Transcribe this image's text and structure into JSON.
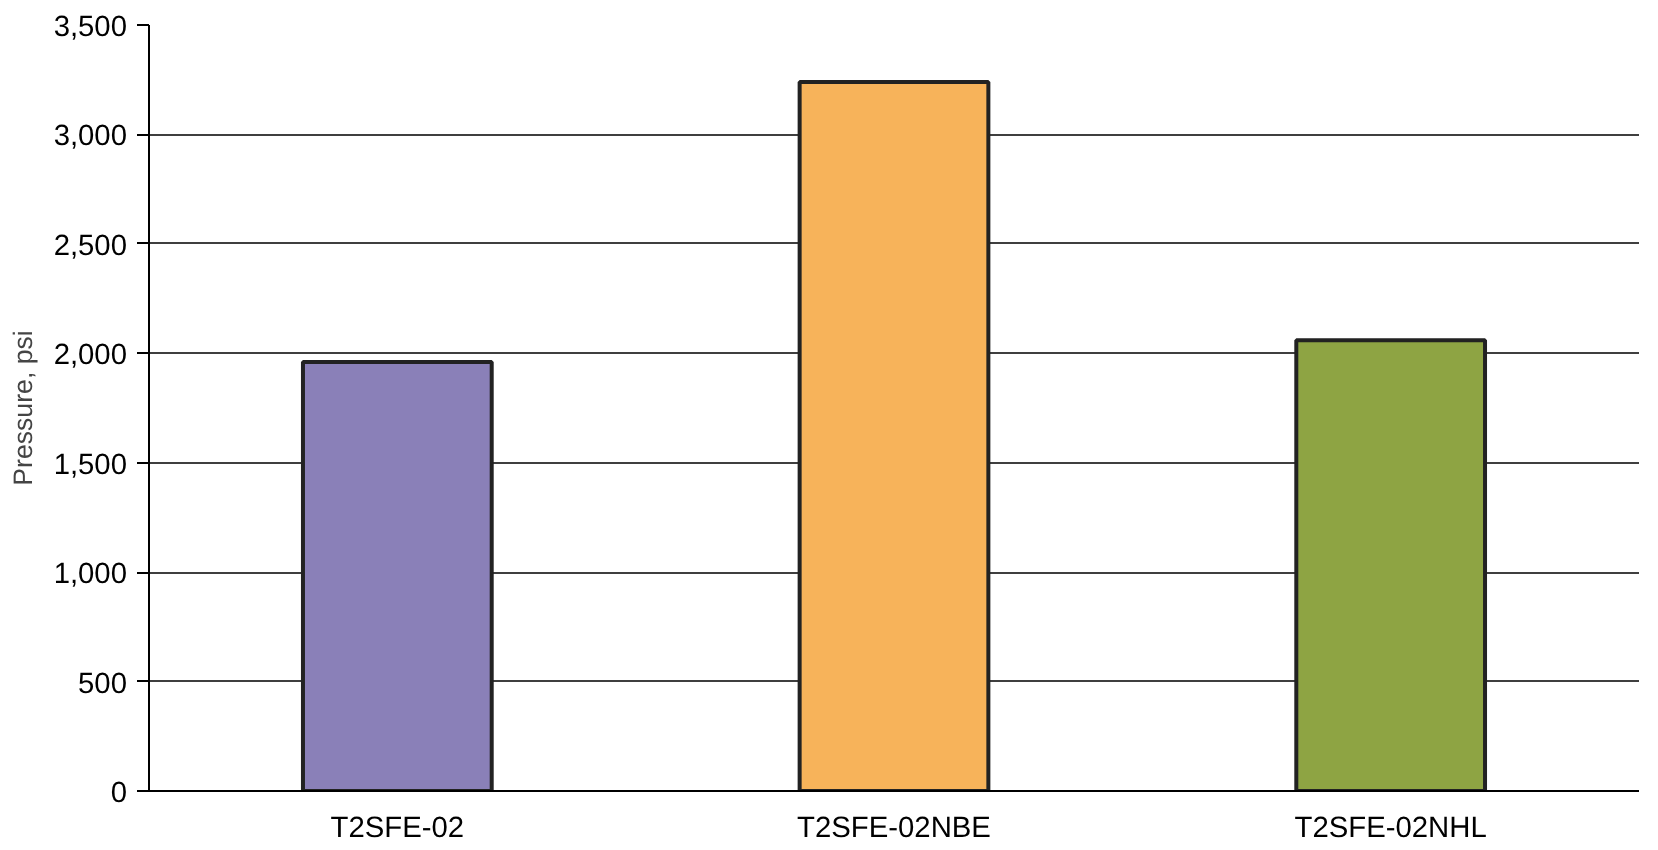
{
  "chart_data": {
    "type": "bar",
    "ylabel": "Pressure, psi",
    "categories": [
      "T2SFE-02",
      "T2SFE-02NBE",
      "T2SFE-02NHL"
    ],
    "values": [
      1960,
      3240,
      2060
    ],
    "colors": [
      "#8a80b8",
      "#f7b35a",
      "#8ea443"
    ],
    "ylim": [
      0,
      3500
    ],
    "yticks": [
      {
        "value": 0,
        "label": "0"
      },
      {
        "value": 500,
        "label": "500"
      },
      {
        "value": 1000,
        "label": "1,000"
      },
      {
        "value": 1500,
        "label": "1,500"
      },
      {
        "value": 2000,
        "label": "2,000"
      },
      {
        "value": 2500,
        "label": "2,500"
      },
      {
        "value": 3000,
        "label": "3,000"
      },
      {
        "value": 3500,
        "label": "3,500"
      }
    ],
    "grid": "y"
  }
}
